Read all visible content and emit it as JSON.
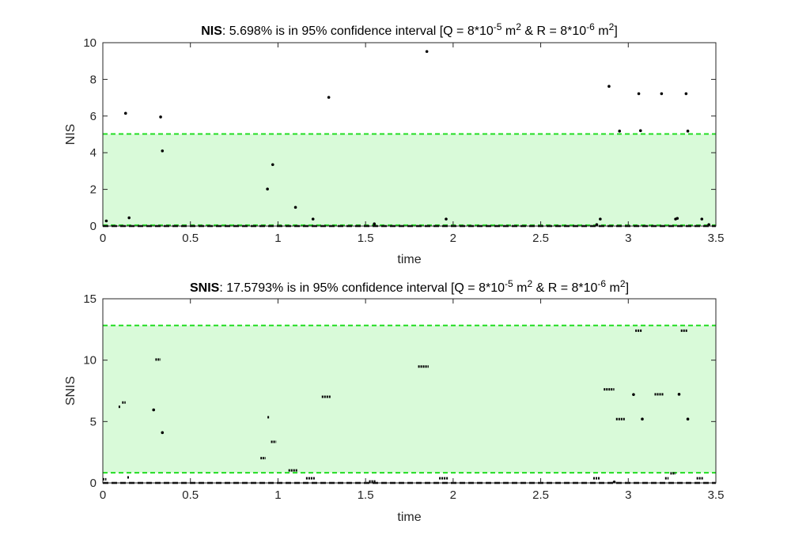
{
  "chart_data": [
    {
      "type": "scatter",
      "title": {
        "bold": "NIS",
        "pct": ": 5.698% is in 95% confidence interval  [Q = 8*10",
        "q_exp": "-5",
        "mid": " m",
        "m_exp1": "2",
        "r": " & R = 8*10",
        "r_exp": "-6",
        "end": " m",
        "m_exp2": "2",
        "close": "]"
      },
      "xlabel": "time",
      "ylabel": "NIS",
      "xlim": [
        0,
        3.5
      ],
      "ylim": [
        0,
        10
      ],
      "xticks": [
        "0",
        "0.5",
        "1",
        "1.5",
        "2",
        "2.5",
        "3",
        "3.5"
      ],
      "yticks": [
        "0",
        "2",
        "4",
        "6",
        "8",
        "10"
      ],
      "confidence_band": [
        0.05,
        5.02
      ],
      "colors": {
        "band_fill": "#d9fad9",
        "band_line": "#22dd22",
        "points": "#000000"
      },
      "grid": false,
      "points": [
        [
          0.02,
          0.28
        ],
        [
          0.13,
          6.15
        ],
        [
          0.15,
          0.45
        ],
        [
          0.33,
          5.95
        ],
        [
          0.34,
          4.1
        ],
        [
          0.94,
          2.02
        ],
        [
          0.97,
          3.35
        ],
        [
          1.1,
          1.02
        ],
        [
          1.2,
          0.38
        ],
        [
          1.29,
          7.02
        ],
        [
          1.55,
          0.12
        ],
        [
          1.85,
          9.52
        ],
        [
          1.96,
          0.38
        ],
        [
          2.84,
          0.38
        ],
        [
          2.89,
          7.62
        ],
        [
          2.95,
          5.18
        ],
        [
          2.82,
          0.08
        ],
        [
          3.06,
          7.22
        ],
        [
          3.07,
          5.2
        ],
        [
          3.19,
          7.22
        ],
        [
          3.27,
          0.38
        ],
        [
          3.28,
          0.42
        ],
        [
          3.33,
          7.22
        ],
        [
          3.34,
          5.18
        ],
        [
          3.42,
          0.38
        ],
        [
          3.46,
          0.08
        ]
      ],
      "zero_run": [
        0,
        3.5
      ]
    },
    {
      "type": "scatter",
      "title": {
        "bold": "SNIS",
        "pct": ": 17.5793% is in 95% confidence interval  [Q = 8*10",
        "q_exp": "-5",
        "mid": " m",
        "m_exp1": "2",
        "r": " & R = 8*10",
        "r_exp": "-6",
        "end": " m",
        "m_exp2": "2",
        "close": "]"
      },
      "xlabel": "time",
      "ylabel": "SNIS",
      "xlim": [
        0,
        3.5
      ],
      "ylim": [
        0,
        15
      ],
      "xticks": [
        "0",
        "0.5",
        "1",
        "1.5",
        "2",
        "2.5",
        "3",
        "3.5"
      ],
      "yticks": [
        "0",
        "5",
        "10",
        "15"
      ],
      "confidence_band": [
        0.83,
        12.83
      ],
      "colors": {
        "band_fill": "#d9fad9",
        "band_line": "#22dd22",
        "points": "#000000"
      },
      "grid": false,
      "segments": [
        [
          0.0,
          0.02,
          0.3
        ],
        [
          0.09,
          0.1,
          6.2
        ],
        [
          0.11,
          0.13,
          6.55
        ],
        [
          0.14,
          0.15,
          0.45
        ],
        [
          0.29,
          0.29,
          5.95
        ],
        [
          0.3,
          0.33,
          10.05
        ],
        [
          0.34,
          0.34,
          4.1
        ],
        [
          0.9,
          0.93,
          2.02
        ],
        [
          0.94,
          0.95,
          5.35
        ],
        [
          0.96,
          0.99,
          3.35
        ],
        [
          1.06,
          1.11,
          1.02
        ],
        [
          1.16,
          1.21,
          0.38
        ],
        [
          1.25,
          1.3,
          7.02
        ],
        [
          1.52,
          1.56,
          0.12
        ],
        [
          1.8,
          1.86,
          9.48
        ],
        [
          1.92,
          1.97,
          0.38
        ],
        [
          2.8,
          2.84,
          0.38
        ],
        [
          2.86,
          2.92,
          7.62
        ],
        [
          2.92,
          2.92,
          0.08
        ],
        [
          2.93,
          2.98,
          5.2
        ],
        [
          3.03,
          3.03,
          7.2
        ],
        [
          3.04,
          3.08,
          12.4
        ],
        [
          3.08,
          3.08,
          5.2
        ],
        [
          3.15,
          3.2,
          7.22
        ],
        [
          3.21,
          3.23,
          0.38
        ],
        [
          3.24,
          3.27,
          0.78
        ],
        [
          3.29,
          3.29,
          7.22
        ],
        [
          3.3,
          3.34,
          12.4
        ],
        [
          3.34,
          3.34,
          5.2
        ],
        [
          3.39,
          3.43,
          0.38
        ]
      ],
      "zero_run": [
        0,
        3.5
      ]
    }
  ]
}
